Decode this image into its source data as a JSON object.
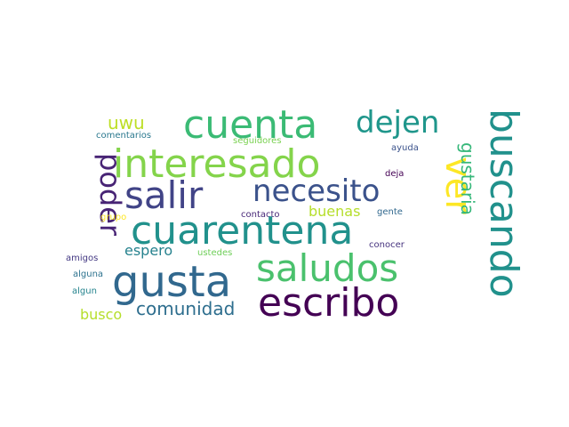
{
  "title": "word cloud",
  "words": [
    {
      "text": "cuenta",
      "color": "#3bbb75"
    },
    {
      "text": "dejen",
      "color": "#1f968b"
    },
    {
      "text": "uwu",
      "color": "#bddf26"
    },
    {
      "text": "comentarios",
      "color": "#2a788e"
    },
    {
      "text": "seguidores",
      "color": "#7ad151"
    },
    {
      "text": "ayuda",
      "color": "#3b528b"
    },
    {
      "text": "interesado",
      "color": "#84d44b"
    },
    {
      "text": "buscando",
      "color": "#21918c"
    },
    {
      "text": "poder",
      "color": "#482475"
    },
    {
      "text": "deja",
      "color": "#440154"
    },
    {
      "text": "salir",
      "color": "#414487"
    },
    {
      "text": "necesito",
      "color": "#3b528b"
    },
    {
      "text": "ver",
      "color": "#fde725"
    },
    {
      "text": "gustaria",
      "color": "#35b779"
    },
    {
      "text": "grupo",
      "color": "#fde725"
    },
    {
      "text": "contacto",
      "color": "#482878"
    },
    {
      "text": "buenas",
      "color": "#b5de2b"
    },
    {
      "text": "gente",
      "color": "#31688e"
    },
    {
      "text": "cuarentena",
      "color": "#21918c"
    },
    {
      "text": "espero",
      "color": "#26828e"
    },
    {
      "text": "ustedes",
      "color": "#6ece58"
    },
    {
      "text": "conocer",
      "color": "#46337e"
    },
    {
      "text": "amigos",
      "color": "#443983"
    },
    {
      "text": "saludos",
      "color": "#4ac16d"
    },
    {
      "text": "alguna",
      "color": "#2c728e"
    },
    {
      "text": "gusta",
      "color": "#31688e"
    },
    {
      "text": "algun",
      "color": "#25848e"
    },
    {
      "text": "comunidad",
      "color": "#2e6e8e"
    },
    {
      "text": "escribo",
      "color": "#440154"
    },
    {
      "text": "busco",
      "color": "#b5de2b"
    }
  ]
}
